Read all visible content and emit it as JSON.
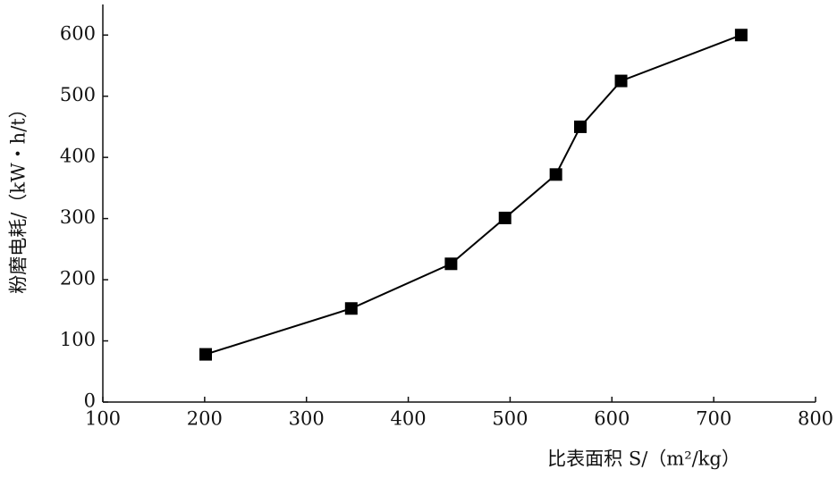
{
  "chart_data": {
    "type": "line",
    "x_label": "比表面积 S/（m²/kg）",
    "y_label": "粉磨电耗/（kW・h/t）",
    "x": [
      201,
      344,
      442,
      495,
      545,
      569,
      609,
      727
    ],
    "series": [
      {
        "color": "#000000",
        "values": [
          78,
          153,
          226,
          301,
          372,
          450,
          525,
          600
        ]
      }
    ],
    "xlim": [
      100,
      800
    ],
    "xticks": [
      100,
      200,
      300,
      400,
      500,
      600,
      700,
      800
    ],
    "ylim": [
      0,
      650
    ],
    "yticks": [
      0,
      100,
      200,
      300,
      400,
      500,
      600
    ],
    "grid": false
  }
}
